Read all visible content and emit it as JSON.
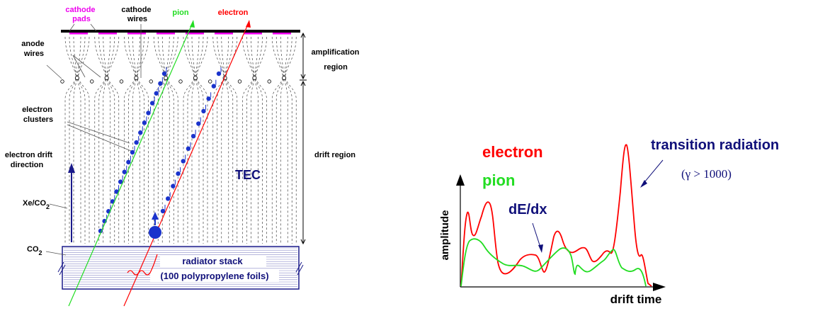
{
  "detector": {
    "cathode_pads": [
      "cathode",
      "pads"
    ],
    "cathode_wires": [
      "cathode",
      "wires"
    ],
    "pion": "pion",
    "electron": "electron",
    "anode_wires": [
      "anode",
      "wires"
    ],
    "amplification_region": [
      "amplification",
      "region"
    ],
    "electron_clusters": [
      "electron",
      "clusters"
    ],
    "drift_region": "drift region",
    "electron_drift_direction": [
      "electron drift",
      "direction"
    ],
    "tec": "TEC",
    "xe_co2": "Xe/CO",
    "xe_co2_sub": "2",
    "co2": "CO",
    "co2_sub": "2",
    "radiator_stack": "radiator stack",
    "radiator_foils": "(100 polypropylene foils)"
  },
  "signal_plot": {
    "electron_label": "electron",
    "pion_label": "pion",
    "transition_radiation": "transition radiation",
    "gamma_condition": "(γ > 1000)",
    "dedx": "dE/dx",
    "ylabel": "amplitude",
    "xlabel": "drift time"
  },
  "colors": {
    "electron": "#ff0000",
    "pion": "#22dd22",
    "magenta": "#ee00ee",
    "navy": "#10107a",
    "cluster": "#1a33cc"
  }
}
